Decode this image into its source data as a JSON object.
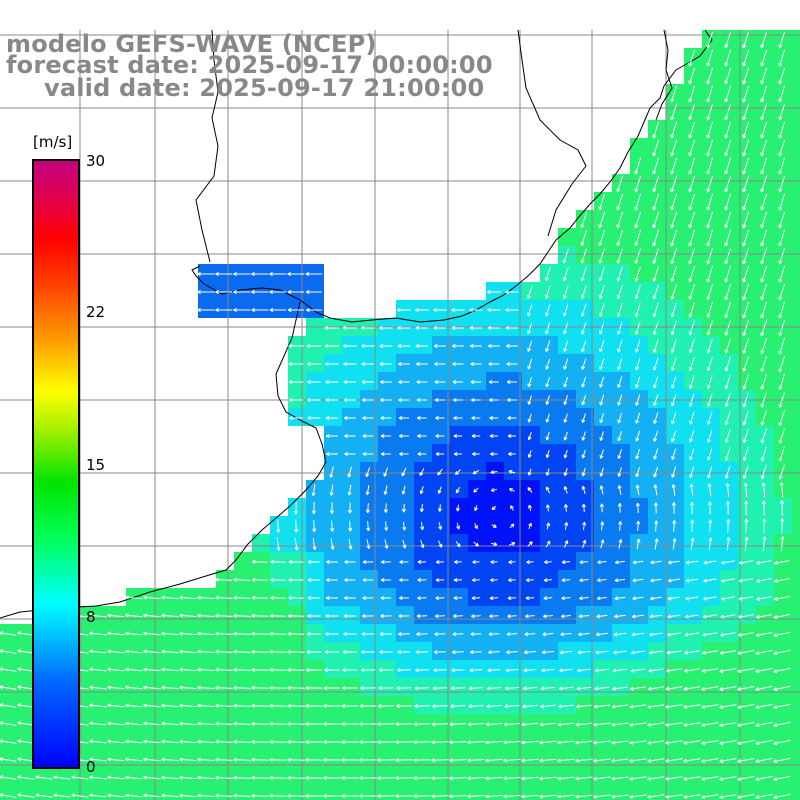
{
  "header": {
    "line1": "modelo GEFS-WAVE (NCEP)",
    "line2": "forecast date: 2025-09-17 00:00:00",
    "line3": "valid date: 2025-09-17 21:00:00"
  },
  "colorbar": {
    "unit": "[m/s]",
    "ticks": [
      "30",
      "22",
      "15",
      "8",
      "0"
    ],
    "colors": [
      "#0000ff",
      "#00b4ff",
      "#00ffff",
      "#00ff55",
      "#00e400",
      "#7fe800",
      "#ffff00",
      "#ffb400",
      "#ff6400",
      "#ff0000",
      "#e6004c",
      "#c20080"
    ]
  },
  "map": {
    "ocean_colors": [
      "#0012f8",
      "#0044f4",
      "#0a7af0",
      "#14b0f4",
      "#10e0f0",
      "#20f0b0",
      "#28f070"
    ],
    "land_color": "#ffffff",
    "grid_color": "#888888",
    "coast_color": "#000000",
    "arrow_color": "#ffffff"
  },
  "chart_data": {
    "type": "heatmap",
    "title": "modelo GEFS-WAVE (NCEP)",
    "subtitle": "forecast date: 2025-09-17 00:00:00 / valid date: 2025-09-17 21:00:00",
    "unit": "m/s",
    "color_range": [
      0,
      30
    ],
    "colorbar_ticks": [
      0,
      8,
      15,
      22,
      30
    ],
    "field": "wind speed with direction arrows",
    "minimum_region": "central ocean area, approx. 0-2 m/s",
    "maximum_region": "southwest coastal waters, approx. 10-12 m/s"
  }
}
